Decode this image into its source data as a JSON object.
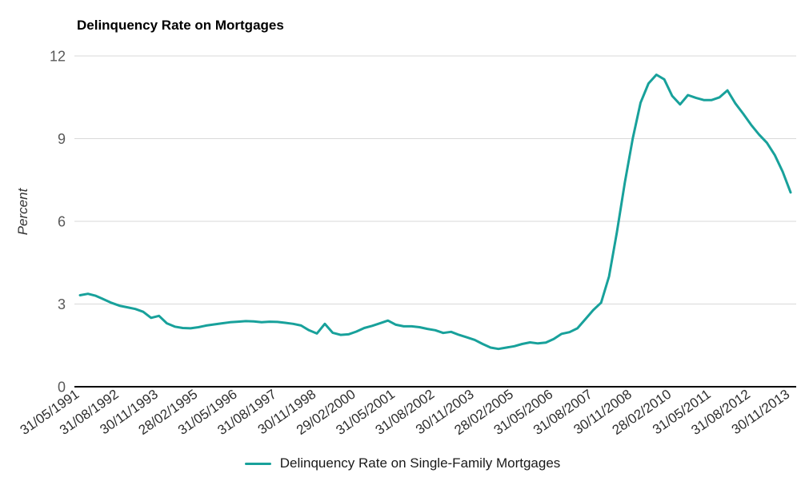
{
  "chart_data": {
    "type": "line",
    "title": "Delinquency Rate on Mortgages",
    "ylabel": "Percent",
    "xlabel": "",
    "ylim": [
      0,
      12
    ],
    "yticks": [
      0,
      3,
      6,
      9,
      12
    ],
    "grid": true,
    "legend_position": "bottom",
    "x_tick_every": 5,
    "x_tick_labels": [
      "31/05/1991",
      "31/08/1992",
      "30/11/1993",
      "28/02/1995",
      "31/05/1996",
      "31/08/1997",
      "30/11/1998",
      "29/02/2000",
      "31/05/2001",
      "31/08/2002",
      "30/11/2003",
      "28/02/2005",
      "31/05/2006",
      "31/08/2007",
      "30/11/2008",
      "28/02/2010",
      "31/05/2011",
      "31/08/2012",
      "30/11/2013"
    ],
    "categories": [
      "31/05/1991",
      "31/08/1991",
      "30/11/1991",
      "29/02/1992",
      "31/05/1992",
      "31/08/1992",
      "30/11/1992",
      "28/02/1993",
      "31/05/1993",
      "31/08/1993",
      "30/11/1993",
      "28/02/1994",
      "31/05/1994",
      "31/08/1994",
      "30/11/1994",
      "28/02/1995",
      "31/05/1995",
      "31/08/1995",
      "30/11/1995",
      "29/02/1996",
      "31/05/1996",
      "31/08/1996",
      "30/11/1996",
      "28/02/1997",
      "31/05/1997",
      "31/08/1997",
      "30/11/1997",
      "28/02/1998",
      "31/05/1998",
      "31/08/1998",
      "30/11/1998",
      "28/02/1999",
      "31/05/1999",
      "31/08/1999",
      "30/11/1999",
      "29/02/2000",
      "31/05/2000",
      "31/08/2000",
      "30/11/2000",
      "28/02/2001",
      "31/05/2001",
      "31/08/2001",
      "30/11/2001",
      "28/02/2002",
      "31/05/2002",
      "31/08/2002",
      "30/11/2002",
      "28/02/2003",
      "31/05/2003",
      "31/08/2003",
      "30/11/2003",
      "29/02/2004",
      "31/05/2004",
      "31/08/2004",
      "30/11/2004",
      "28/02/2005",
      "31/05/2005",
      "31/08/2005",
      "30/11/2005",
      "28/02/2006",
      "31/05/2006",
      "31/08/2006",
      "30/11/2006",
      "28/02/2007",
      "31/05/2007",
      "31/08/2007",
      "30/11/2007",
      "28/02/2008",
      "31/05/2008",
      "31/08/2008",
      "30/11/2008",
      "28/02/2009",
      "31/05/2009",
      "31/08/2009",
      "30/11/2009",
      "28/02/2010",
      "31/05/2010",
      "31/08/2010",
      "30/11/2010",
      "28/02/2011",
      "31/05/2011",
      "31/08/2011",
      "30/11/2011",
      "29/02/2012",
      "31/05/2012",
      "31/08/2012",
      "30/11/2012",
      "28/02/2013",
      "31/05/2013",
      "31/08/2013",
      "30/11/2013"
    ],
    "series": [
      {
        "name": "Delinquency Rate on Single-Family Mortgages",
        "values": [
          3.32,
          3.37,
          3.3,
          3.17,
          3.04,
          2.94,
          2.88,
          2.82,
          2.72,
          2.5,
          2.57,
          2.3,
          2.18,
          2.13,
          2.12,
          2.16,
          2.22,
          2.26,
          2.3,
          2.34,
          2.36,
          2.38,
          2.37,
          2.34,
          2.36,
          2.35,
          2.32,
          2.28,
          2.22,
          2.05,
          1.93,
          2.28,
          1.96,
          1.88,
          1.9,
          2.0,
          2.13,
          2.21,
          2.3,
          2.4,
          2.25,
          2.19,
          2.19,
          2.16,
          2.1,
          2.05,
          1.95,
          1.99,
          1.88,
          1.79,
          1.7,
          1.55,
          1.42,
          1.37,
          1.42,
          1.47,
          1.55,
          1.61,
          1.57,
          1.6,
          1.73,
          1.92,
          1.98,
          2.12,
          2.45,
          2.78,
          3.05,
          4.0,
          5.6,
          7.4,
          9.0,
          10.3,
          11.0,
          11.32,
          11.15,
          10.55,
          10.24,
          10.58,
          10.48,
          10.4,
          10.4,
          10.5,
          10.75,
          10.28,
          9.9,
          9.5,
          9.15,
          8.85,
          8.4,
          7.8,
          7.05
        ]
      }
    ],
    "style": {
      "line_color": "#18A19B",
      "grid_color": "#d9d9d9",
      "axis_color": "#000000",
      "y_tick_text_color": "#595959",
      "x_tick_text_color": "#2e2e2e"
    }
  },
  "legend": {
    "label": "Delinquency Rate on Single-Family Mortgages"
  }
}
